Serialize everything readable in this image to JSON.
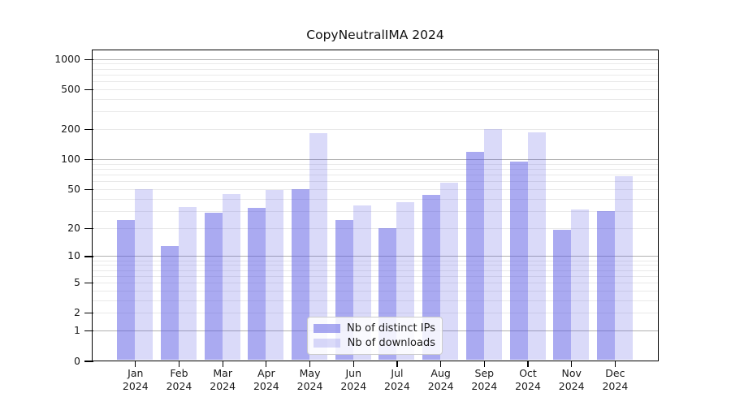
{
  "title": "CopyNeutralIMA 2024",
  "legend": {
    "items": [
      {
        "label": "Nb of distinct IPs"
      },
      {
        "label": "Nb of downloads"
      }
    ]
  },
  "chart_data": {
    "type": "bar",
    "title": "CopyNeutralIMA 2024",
    "categories": [
      "Jan",
      "Feb",
      "Mar",
      "Apr",
      "May",
      "Jun",
      "Jul",
      "Aug",
      "Sep",
      "Oct",
      "Nov",
      "Dec"
    ],
    "x_tick_second_line": "2024",
    "series": [
      {
        "name": "Nb of distinct IPs",
        "fill": "rgba(86,86,228,0.5)",
        "composite_hex": "#ababf2",
        "values": [
          24,
          13,
          29,
          32,
          50,
          24,
          20,
          44,
          119,
          94,
          19,
          30
        ]
      },
      {
        "name": "Nb of downloads",
        "fill": "rgba(86,86,228,0.22)",
        "composite_hex": "#dadaf9",
        "values": [
          50,
          33,
          45,
          49,
          183,
          34,
          37,
          58,
          200,
          186,
          31,
          67
        ]
      }
    ],
    "yticks": [
      0,
      1,
      2,
      5,
      10,
      20,
      50,
      100,
      200,
      500,
      1000
    ],
    "ylim": [
      0,
      1250
    ],
    "scale": "log10(1+y)",
    "grid": true,
    "legend_position": "lower center",
    "colors": {
      "major_grid": "#b0b0b0",
      "minor_grid": "#e9e9e9",
      "spine": "#000000",
      "text": "#1a1a1a",
      "legend_border": "#cccccc",
      "legend_bg": "rgba(255,255,255,0.85)"
    }
  }
}
